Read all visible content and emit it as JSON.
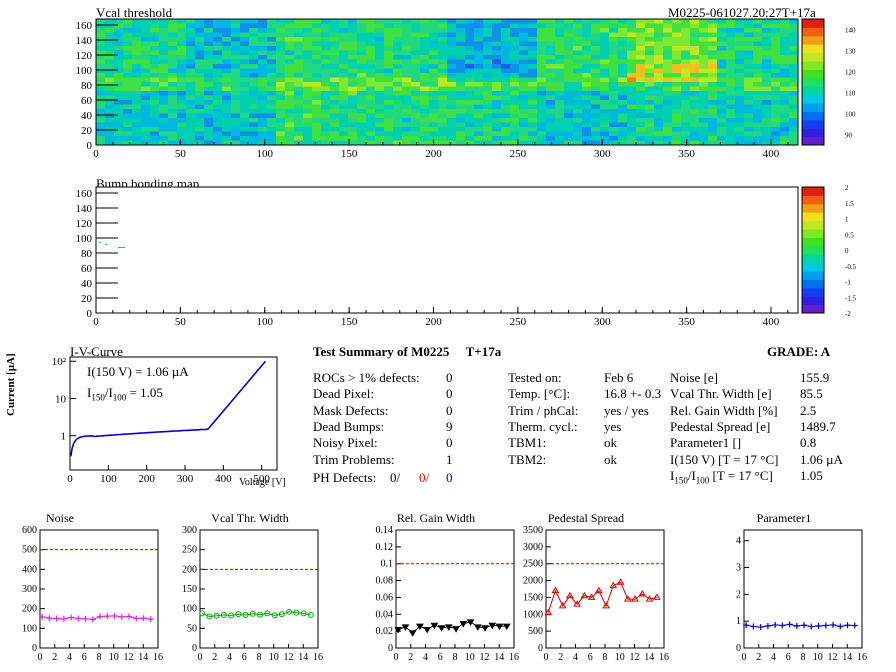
{
  "top_map": {
    "title": "Vcal threshold",
    "label_right": "M0225-061027.20:27T+17a",
    "x_ticks": [
      "0",
      "50",
      "100",
      "150",
      "200",
      "250",
      "300",
      "350",
      "400"
    ],
    "y_ticks": [
      "0",
      "20",
      "40",
      "60",
      "80",
      "100",
      "120",
      "140",
      "160"
    ],
    "colorbar_ticks": [
      "90",
      "100",
      "110",
      "120",
      "130",
      "140"
    ]
  },
  "bump_map": {
    "title": "Bump bonding map",
    "x_ticks": [
      "0",
      "50",
      "100",
      "150",
      "200",
      "250",
      "300",
      "350",
      "400"
    ],
    "y_ticks": [
      "0",
      "20",
      "40",
      "60",
      "80",
      "100",
      "120",
      "140",
      "160"
    ],
    "colorbar_ticks": [
      "-2",
      "-1.5",
      "-1",
      "-0.5",
      "0",
      "0.5",
      "1",
      "1.5",
      "2"
    ]
  },
  "iv": {
    "title": "I-V-Curve",
    "annot1": "I(150 V) = 1.06 µA",
    "annot2_a": "I",
    "annot2_sub1": "150",
    "annot2_b": "/I",
    "annot2_sub2": "100",
    "annot2_c": " =  1.05",
    "ylabel": "Current [µA]",
    "xlabel": "Voltage [V]",
    "x_ticks": [
      "0",
      "100",
      "200",
      "300",
      "400",
      "500"
    ],
    "y_ticks": [
      "1",
      "10",
      "10²"
    ]
  },
  "summary": {
    "title": "Test Summary of M0225",
    "tag": "T+17a",
    "grade": "GRADE:  A",
    "left": [
      {
        "label": "ROCs > 1% defects:",
        "value": "0"
      },
      {
        "label": "Dead Pixel:",
        "value": "0"
      },
      {
        "label": "Mask Defects:",
        "value": "0"
      },
      {
        "label": "Dead Bumps:",
        "value": "9"
      },
      {
        "label": "Noisy Pixel:",
        "value": "0"
      },
      {
        "label": "Trim Problems:",
        "value": "1"
      }
    ],
    "ph_label": "PH Defects:",
    "ph_v1": "0/",
    "ph_v2": "0/",
    "ph_v3": "0",
    "middle": [
      {
        "label": "Tested on:",
        "value": "Feb 6"
      },
      {
        "label": "Temp. [°C]:",
        "value": "16.8 +- 0.3"
      },
      {
        "label": "Trim / phCal:",
        "value": "yes / yes"
      },
      {
        "label": "Therm. cycl.:",
        "value": "yes"
      },
      {
        "label": "TBM1:",
        "value": "ok"
      },
      {
        "label": "TBM2:",
        "value": "ok"
      }
    ],
    "right": [
      {
        "label": "Noise [e]",
        "value": "155.9"
      },
      {
        "label": "Vcal Thr. Width [e]",
        "value": "85.5"
      },
      {
        "label": "Rel. Gain Width [%]",
        "value": "2.5"
      },
      {
        "label": "Pedestal Spread [e]",
        "value": "1489.7"
      },
      {
        "label": "Parameter1 []",
        "value": "0.8"
      },
      {
        "label": "I(150 V) [T = 17 °C]",
        "value": "1.06 µA"
      }
    ],
    "ratio_a": "I",
    "ratio_sub1": "150",
    "ratio_b": "/I",
    "ratio_sub2": "100",
    "ratio_c": "  [T = 17 °C]",
    "ratio_value": "1.05"
  },
  "chart_data": [
    {
      "type": "line",
      "title": "Noise",
      "x": [
        0,
        1,
        2,
        3,
        4,
        5,
        6,
        7,
        8,
        9,
        10,
        11,
        12,
        13,
        14,
        15
      ],
      "values": [
        158,
        152,
        150,
        148,
        155,
        150,
        148,
        145,
        160,
        162,
        163,
        158,
        160,
        150,
        152,
        147
      ],
      "ylim": [
        0,
        600
      ],
      "yticks": [
        0,
        100,
        200,
        300,
        400,
        500,
        600
      ],
      "limit": 500,
      "color": "#e020e0",
      "marker": "cross"
    },
    {
      "type": "line",
      "title": "Vcal Thr. Width",
      "x": [
        0,
        1,
        2,
        3,
        4,
        5,
        6,
        7,
        8,
        9,
        10,
        11,
        12,
        13,
        14,
        15
      ],
      "values": [
        88,
        80,
        82,
        84,
        83,
        86,
        84,
        87,
        85,
        88,
        83,
        86,
        92,
        90,
        88,
        84
      ],
      "ylim": [
        0,
        300
      ],
      "yticks": [
        0,
        50,
        100,
        150,
        200,
        250,
        300
      ],
      "limit": 200,
      "color": "#00aa00",
      "marker": "circle"
    },
    {
      "type": "line",
      "title": "Rel. Gain Width",
      "x": [
        0,
        1,
        2,
        3,
        4,
        5,
        6,
        7,
        8,
        9,
        10,
        11,
        12,
        13,
        14,
        15
      ],
      "values": [
        0.022,
        0.025,
        0.018,
        0.026,
        0.022,
        0.027,
        0.024,
        0.025,
        0.023,
        0.029,
        0.031,
        0.025,
        0.024,
        0.027,
        0.026,
        0.026
      ],
      "ylim": [
        0,
        0.14
      ],
      "yticks": [
        0,
        0.02,
        0.04,
        0.06,
        0.08,
        0.1,
        0.12,
        0.14
      ],
      "limit": 0.1,
      "color": "#000000",
      "marker": "tri-down"
    },
    {
      "type": "line",
      "title": "Pedestal Spread",
      "x": [
        0,
        1,
        2,
        3,
        4,
        5,
        6,
        7,
        8,
        9,
        10,
        11,
        12,
        13,
        14,
        15
      ],
      "values": [
        1050,
        1700,
        1250,
        1550,
        1300,
        1550,
        1500,
        1700,
        1250,
        1850,
        1950,
        1450,
        1450,
        1600,
        1450,
        1500
      ],
      "ylim": [
        0,
        3500
      ],
      "yticks": [
        0,
        500,
        1000,
        1500,
        2000,
        2500,
        3000,
        3500
      ],
      "limit": 2500,
      "color": "#dd0000",
      "marker": "tri-up"
    },
    {
      "type": "line",
      "title": "Parameter1",
      "x": [
        0,
        1,
        2,
        3,
        4,
        5,
        6,
        7,
        8,
        9,
        10,
        11,
        12,
        13,
        14,
        15
      ],
      "values": [
        0.85,
        0.8,
        0.78,
        0.82,
        0.86,
        0.84,
        0.88,
        0.82,
        0.85,
        0.8,
        0.82,
        0.84,
        0.86,
        0.8,
        0.85,
        0.84
      ],
      "ylim": [
        0,
        4.4
      ],
      "yticks": [
        0,
        1,
        2,
        3,
        4
      ],
      "limit": null,
      "color": "#0000cc",
      "marker": "cross"
    }
  ],
  "colors": {
    "noise": "#e020e0",
    "vcal": "#00aa00",
    "gain": "#000000",
    "pedestal": "#dd0000",
    "param": "#0000cc",
    "limit": "#cc0000",
    "iv": "#0000cc"
  }
}
